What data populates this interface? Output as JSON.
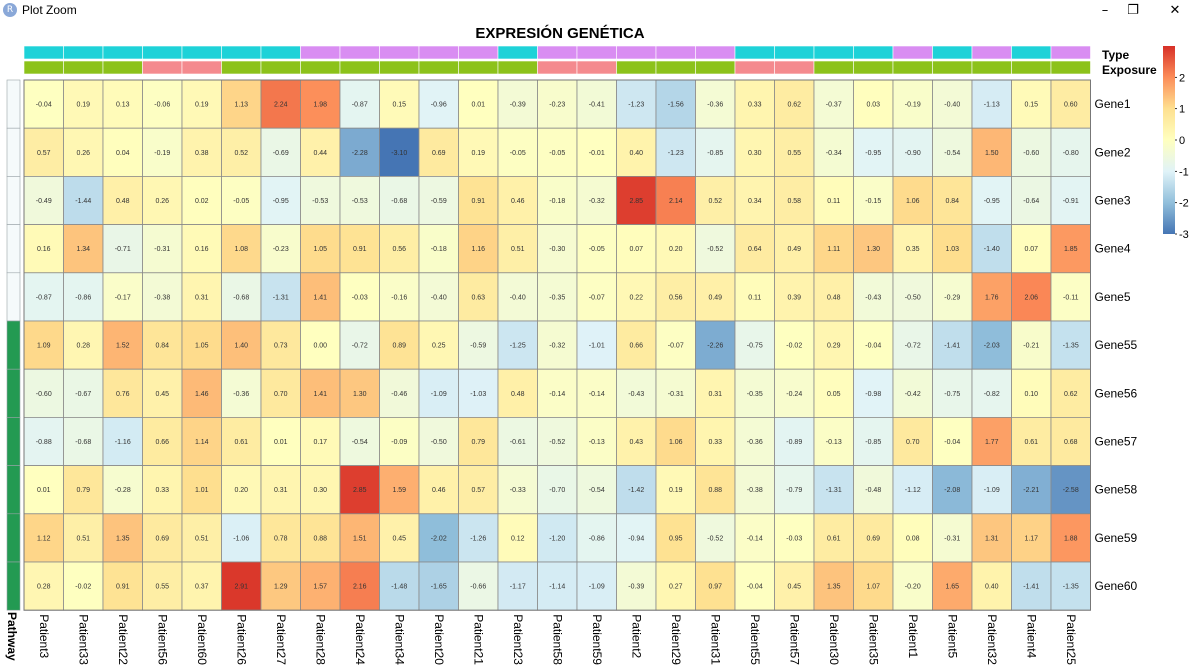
{
  "window": {
    "title": "Plot Zoom",
    "app_icon": "R",
    "minimize_icon": "–",
    "restore_icon": "❐",
    "close_icon": "✕"
  },
  "chart_data": {
    "type": "heatmap",
    "title": "EXPRESIÓN GENÉTICA",
    "columns": [
      "Patient3",
      "Patient33",
      "Patient22",
      "Patient56",
      "Patient60",
      "Patient26",
      "Patient27",
      "Patient28",
      "Patient24",
      "Patient34",
      "Patient20",
      "Patient21",
      "Patient23",
      "Patient58",
      "Patient59",
      "Patient2",
      "Patient29",
      "Patient31",
      "Patient55",
      "Patient57",
      "Patient30",
      "Patient35",
      "Patient1",
      "Patient5",
      "Patient32",
      "Patient4",
      "Patient25"
    ],
    "rows": [
      "Gene1",
      "Gene2",
      "Gene3",
      "Gene4",
      "Gene5",
      "Gene55",
      "Gene56",
      "Gene57",
      "Gene58",
      "Gene59",
      "Gene60"
    ],
    "values": [
      [
        -0.04,
        0.19,
        0.13,
        -0.06,
        0.19,
        1.13,
        2.24,
        1.98,
        -0.87,
        0.15,
        -0.96,
        0.01,
        -0.39,
        -0.23,
        -0.41,
        -1.23,
        -1.56,
        -0.36,
        0.33,
        0.62,
        -0.37,
        0.03,
        -0.19,
        -0.4,
        -1.13,
        0.15,
        0.6
      ],
      [
        0.57,
        0.26,
        0.04,
        -0.19,
        0.38,
        0.52,
        -0.69,
        0.44,
        -2.28,
        -3.1,
        0.69,
        0.19,
        -0.05,
        -0.05,
        -0.01,
        0.4,
        -1.23,
        -0.85,
        0.3,
        0.55,
        -0.34,
        -0.95,
        -0.9,
        -0.54,
        1.5,
        -0.6,
        -0.8
      ],
      [
        -0.49,
        -1.44,
        0.48,
        0.26,
        0.02,
        -0.05,
        -0.95,
        -0.53,
        -0.53,
        -0.68,
        -0.59,
        0.91,
        0.46,
        -0.18,
        -0.32,
        2.85,
        2.14,
        0.52,
        0.34,
        0.58,
        0.11,
        -0.15,
        1.06,
        0.84,
        -0.95,
        -0.64,
        -0.91
      ],
      [
        0.16,
        1.34,
        -0.71,
        -0.31,
        0.16,
        1.08,
        -0.23,
        1.05,
        0.91,
        0.56,
        -0.18,
        1.16,
        0.51,
        -0.3,
        -0.05,
        0.07,
        0.2,
        -0.52,
        0.64,
        0.49,
        1.11,
        1.3,
        0.35,
        1.03,
        -1.4,
        0.07,
        1.85
      ],
      [
        -0.87,
        -0.86,
        -0.17,
        -0.38,
        0.31,
        -0.68,
        -1.31,
        1.41,
        -0.03,
        -0.16,
        -0.4,
        0.63,
        -0.4,
        -0.35,
        -0.07,
        0.22,
        0.56,
        0.49,
        0.11,
        0.39,
        0.48,
        -0.43,
        -0.5,
        -0.29,
        1.76,
        2.06,
        -0.11
      ],
      [
        1.09,
        0.28,
        1.52,
        0.84,
        1.05,
        1.4,
        0.73,
        -0.0,
        -0.72,
        0.89,
        0.25,
        -0.59,
        -1.25,
        -0.32,
        -1.01,
        0.66,
        -0.07,
        -2.26,
        -0.75,
        -0.02,
        0.29,
        -0.04,
        -0.72,
        -1.41,
        -2.03,
        -0.21,
        -1.35
      ],
      [
        -0.6,
        -0.67,
        0.76,
        0.45,
        1.46,
        -0.36,
        0.7,
        1.41,
        1.3,
        -0.46,
        -1.09,
        -1.03,
        0.48,
        -0.14,
        -0.14,
        -0.43,
        -0.31,
        0.31,
        -0.35,
        -0.24,
        0.05,
        -0.98,
        -0.42,
        -0.75,
        -0.82,
        0.1,
        0.62
      ],
      [
        -0.88,
        -0.68,
        -1.16,
        0.66,
        1.14,
        0.61,
        0.01,
        0.17,
        -0.54,
        -0.09,
        -0.5,
        0.79,
        -0.61,
        -0.52,
        -0.13,
        0.43,
        1.06,
        0.33,
        -0.36,
        -0.89,
        -0.13,
        -0.85,
        0.7,
        -0.04,
        1.77,
        0.61,
        0.68
      ],
      [
        0.01,
        0.79,
        -0.28,
        0.33,
        1.01,
        0.2,
        0.31,
        0.3,
        2.85,
        1.59,
        0.46,
        0.57,
        -0.33,
        -0.7,
        -0.54,
        -1.42,
        0.19,
        0.88,
        -0.38,
        -0.79,
        -1.31,
        -0.48,
        -1.12,
        -2.08,
        -1.09,
        -2.21,
        -2.58
      ],
      [
        1.12,
        0.51,
        1.35,
        0.69,
        0.51,
        -1.06,
        0.78,
        0.88,
        1.51,
        0.45,
        -2.02,
        -1.26,
        0.12,
        -1.2,
        -0.86,
        -0.94,
        0.95,
        -0.52,
        -0.14,
        -0.03,
        0.61,
        0.69,
        0.08,
        -0.31,
        1.31,
        1.17,
        1.88
      ],
      [
        0.28,
        -0.02,
        0.91,
        0.55,
        0.37,
        2.91,
        1.29,
        1.57,
        2.16,
        -1.48,
        -1.65,
        -0.66,
        -1.17,
        -1.14,
        -1.09,
        -0.39,
        0.27,
        0.97,
        -0.04,
        0.45,
        1.35,
        1.07,
        -0.2,
        1.65,
        0.4,
        -1.41,
        -1.35
      ]
    ],
    "color_scale": [
      "#4575b4",
      "#91bfdb",
      "#e0f3f8",
      "#ffffbf",
      "#fee090",
      "#fc8d59",
      "#d73027"
    ],
    "value_range": [
      -3,
      3
    ],
    "legend_tick_labels": [
      "2",
      "1",
      "0",
      "-1",
      "-2",
      "-3"
    ],
    "annotation_labels": {
      "top": [
        "Type",
        "Exposure"
      ],
      "left": "Pathway"
    },
    "type_annotation": [
      "cyan",
      "cyan",
      "cyan",
      "cyan",
      "cyan",
      "cyan",
      "cyan",
      "violet",
      "violet",
      "violet",
      "violet",
      "violet",
      "cyan",
      "violet",
      "violet",
      "violet",
      "violet",
      "violet",
      "cyan",
      "cyan",
      "cyan",
      "cyan",
      "violet",
      "cyan",
      "violet",
      "cyan",
      "violet"
    ],
    "exposure_annotation": [
      "green",
      "green",
      "green",
      "pink",
      "pink",
      "green",
      "green",
      "green",
      "green",
      "green",
      "green",
      "green",
      "green",
      "pink",
      "pink",
      "green",
      "green",
      "green",
      "pink",
      "pink",
      "green",
      "green",
      "green",
      "green",
      "green",
      "green",
      "green"
    ],
    "pathway_annotation": [
      "white",
      "white",
      "white",
      "white",
      "white",
      "darkgreen",
      "darkgreen",
      "darkgreen",
      "darkgreen",
      "darkgreen",
      "darkgreen"
    ],
    "annotation_colors": {
      "cyan": "#1ed2d8",
      "violet": "#d98df2",
      "green": "#8cc21a",
      "pink": "#f48a8e",
      "white": "#f5fafb",
      "darkgreen": "#239a52"
    }
  }
}
